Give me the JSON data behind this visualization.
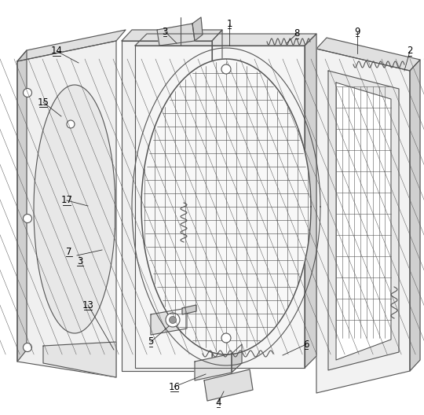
{
  "bg_color": "#ffffff",
  "line_color": "#555555",
  "line_width": 0.8
}
